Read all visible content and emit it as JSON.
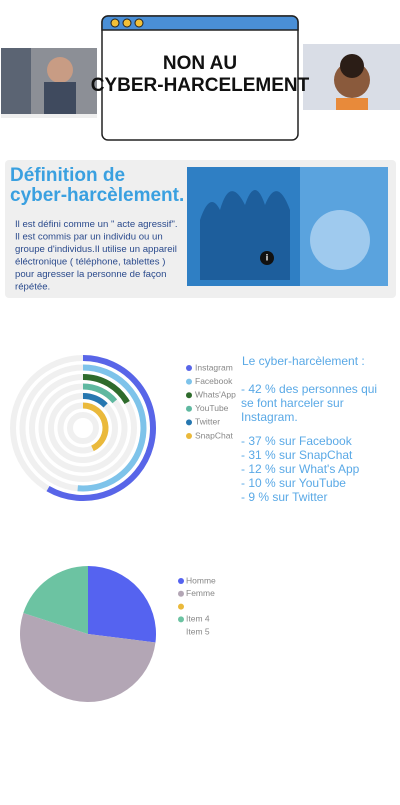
{
  "header": {
    "title": "NON AU CYBER-HARCELEMENT"
  },
  "definition": {
    "title": "Définition de cyber-harcèlement.",
    "text": "Il est défini comme un \" acte agressif\". Il est commis par un individu ou un groupe d'individus.Il utilise un appareil éléctronique ( téléphone, tablettes ) pour agresser la personne de façon répétée."
  },
  "stats": {
    "heading": "Le cyber-harcèlement :",
    "lines": [
      "- 42 % des personnes  qui se font harceler sur Instagram.",
      "- 37 % sur Facebook",
      "- 31 % sur SnapChat",
      "- 12 % sur What's App",
      "- 10 % sur YouTube",
      "- 9 % sur Twitter"
    ]
  },
  "chart_data": [
    {
      "type": "radial",
      "categories": [
        "Instagram",
        "Facebook",
        "Whats'App",
        "YouTube",
        "Twitter",
        "SnapChat"
      ],
      "values": [
        42,
        37,
        12,
        10,
        9,
        31
      ],
      "colors": [
        "#5865e8",
        "#7ec3ea",
        "#2e6b2c",
        "#5fb8a0",
        "#2677b0",
        "#eab93b"
      ],
      "xlim": [
        0,
        72
      ]
    },
    {
      "type": "pie",
      "categories": [
        "Homme",
        "Femme",
        null,
        "Item 4",
        "Item 5"
      ],
      "values": [
        27,
        53,
        0,
        20,
        0
      ],
      "colors": [
        "#5563f0",
        "#b3a6b5",
        "#eab93b",
        "#6cc3a2",
        null
      ]
    }
  ]
}
